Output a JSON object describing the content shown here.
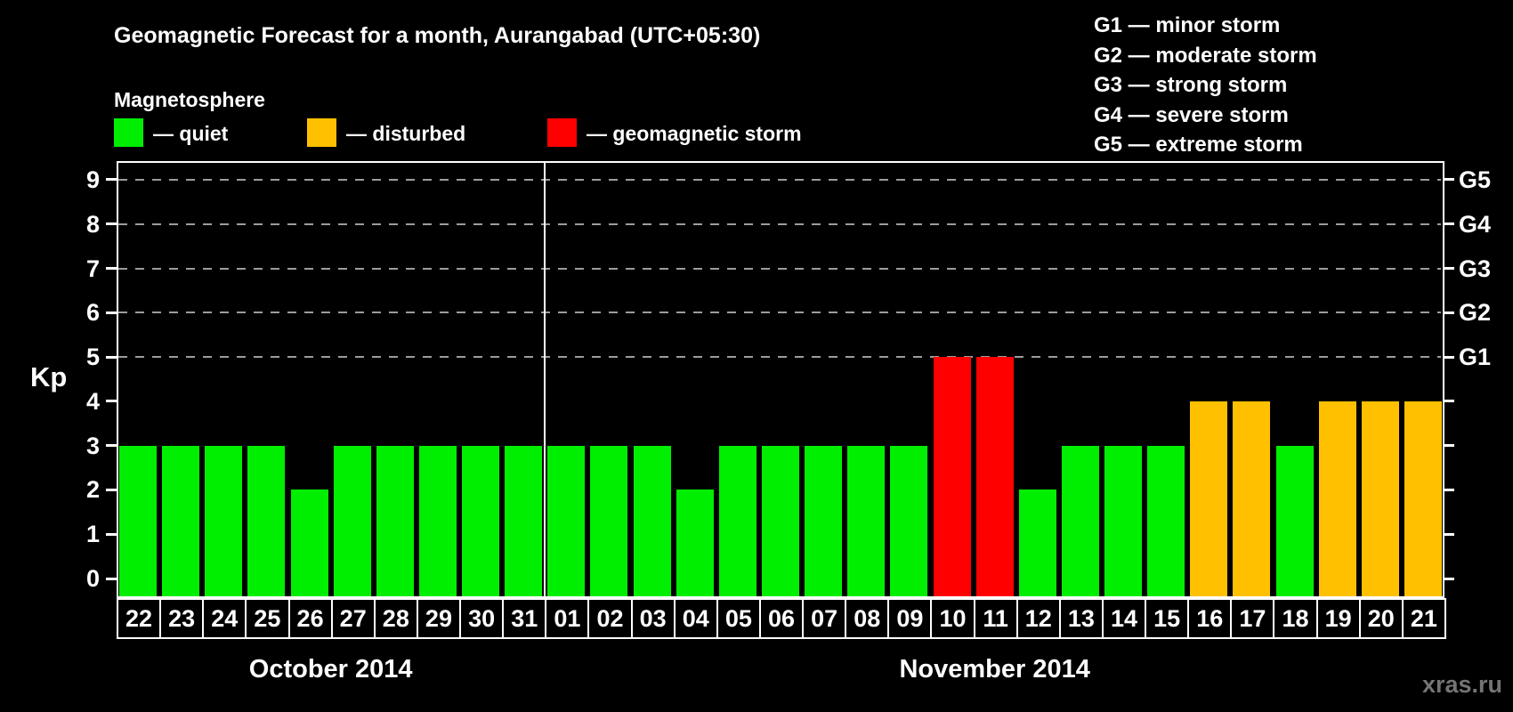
{
  "header": {
    "title": "Geomagnetic Forecast for a month, Aurangabad (UTC+05:30)",
    "subtitle": "Magnetosphere"
  },
  "legend": {
    "items": [
      {
        "status": "quiet",
        "label": "— quiet",
        "color": "#00EE00"
      },
      {
        "status": "disturbed",
        "label": "— disturbed",
        "color": "#FFC000"
      },
      {
        "status": "storm",
        "label": "— geomagnetic storm",
        "color": "#FF0000"
      }
    ]
  },
  "g_scale_legend": {
    "items": [
      "G1 — minor storm",
      "G2 — moderate storm",
      "G3 — strong storm",
      "G4 — severe storm",
      "G5 — extreme storm"
    ]
  },
  "watermark": "xras.ru",
  "chart_data": {
    "type": "bar",
    "title": "Geomagnetic Forecast for a month, Aurangabad (UTC+05:30)",
    "ylabel": "Kp",
    "ylim": [
      0,
      9
    ],
    "yticks": [
      0,
      1,
      2,
      3,
      4,
      5,
      6,
      7,
      8,
      9
    ],
    "gridlines_at": [
      5,
      6,
      7,
      8,
      9
    ],
    "grid_style": "dashed",
    "legend_position": "top",
    "right_axis_labels": [
      {
        "kp": 5,
        "label": "G1"
      },
      {
        "kp": 6,
        "label": "G2"
      },
      {
        "kp": 7,
        "label": "G3"
      },
      {
        "kp": 8,
        "label": "G4"
      },
      {
        "kp": 9,
        "label": "G5"
      }
    ],
    "months": [
      {
        "label": "October 2014",
        "days": [
          "22",
          "23",
          "24",
          "25",
          "26",
          "27",
          "28",
          "29",
          "30",
          "31"
        ]
      },
      {
        "label": "November 2014",
        "days": [
          "01",
          "02",
          "03",
          "04",
          "05",
          "06",
          "07",
          "08",
          "09",
          "10",
          "11",
          "12",
          "13",
          "14",
          "15",
          "16",
          "17",
          "18",
          "19",
          "20",
          "21"
        ]
      }
    ],
    "values": [
      3,
      3,
      3,
      3,
      2,
      3,
      3,
      3,
      3,
      3,
      3,
      3,
      3,
      2,
      3,
      3,
      3,
      3,
      3,
      5,
      5,
      2,
      3,
      3,
      3,
      4,
      4,
      3,
      4,
      4,
      4
    ],
    "statuses": [
      "quiet",
      "quiet",
      "quiet",
      "quiet",
      "quiet",
      "quiet",
      "quiet",
      "quiet",
      "quiet",
      "quiet",
      "quiet",
      "quiet",
      "quiet",
      "quiet",
      "quiet",
      "quiet",
      "quiet",
      "quiet",
      "quiet",
      "storm",
      "storm",
      "quiet",
      "quiet",
      "quiet",
      "quiet",
      "disturbed",
      "disturbed",
      "quiet",
      "disturbed",
      "disturbed",
      "disturbed"
    ],
    "colors": {
      "quiet": "#00EE00",
      "disturbed": "#FFC000",
      "storm": "#FF0000"
    }
  }
}
